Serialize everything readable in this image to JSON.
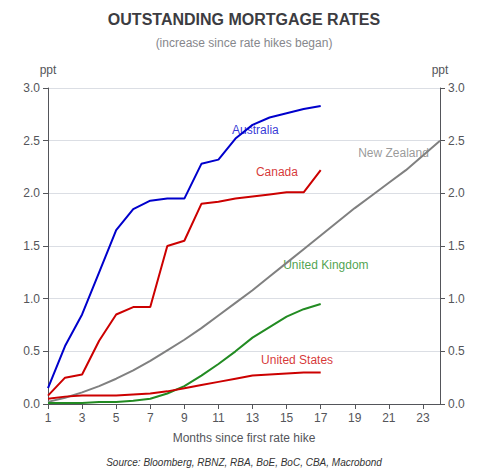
{
  "chart_data": {
    "type": "line",
    "title": "OUTSTANDING MORTGAGE RATES",
    "subtitle": "(increase since rate hikes began)",
    "xlabel": "Months since first rate hike",
    "ylabel": "ppt",
    "y2label": "ppt",
    "source": "Source: Bloomberg, RBNZ, RBA, BoE, BoC, CBA, Macrobond",
    "xlim": [
      1,
      24
    ],
    "xticks": [
      1,
      3,
      5,
      7,
      9,
      11,
      13,
      15,
      17,
      19,
      21,
      23
    ],
    "ylim": [
      0.0,
      3.0
    ],
    "yticks": [
      {
        "value": 0.0,
        "label": "0.0"
      },
      0.5,
      {
        "value": 1.0,
        "label": "1.0"
      },
      1.5,
      {
        "value": 2.0,
        "label": "2.0"
      },
      2.5,
      {
        "value": 3.0,
        "label": "3.0"
      }
    ],
    "y2lim": [
      0.0,
      3.0
    ],
    "y2ticks": [
      {
        "value": 0.0,
        "label": "0.0"
      },
      0.5,
      {
        "value": 1.0,
        "label": "1.0"
      },
      1.5,
      {
        "value": 2.0,
        "label": "2.0"
      },
      2.5,
      {
        "value": 3.0,
        "label": "3.0"
      }
    ],
    "grid": "y",
    "series": [
      {
        "name": "New Zealand",
        "color": "#808080",
        "x": [
          1,
          2,
          3,
          4,
          5,
          6,
          7,
          8,
          9,
          10,
          11,
          12,
          13,
          14,
          15,
          16,
          17,
          18,
          19,
          20,
          21,
          22,
          23,
          24
        ],
        "values": [
          0.02,
          0.06,
          0.11,
          0.17,
          0.24,
          0.32,
          0.41,
          0.51,
          0.61,
          0.72,
          0.84,
          0.96,
          1.08,
          1.21,
          1.34,
          1.47,
          1.6,
          1.73,
          1.86,
          1.98,
          2.1,
          2.22,
          2.36,
          2.5
        ]
      },
      {
        "name": "United Kingdom",
        "color": "#228B22",
        "x": [
          1,
          2,
          3,
          4,
          5,
          6,
          7,
          8,
          9,
          10,
          11,
          12,
          13,
          14,
          15,
          16,
          17
        ],
        "values": [
          0.01,
          0.01,
          0.01,
          0.02,
          0.02,
          0.03,
          0.05,
          0.1,
          0.17,
          0.27,
          0.38,
          0.5,
          0.63,
          0.73,
          0.83,
          0.9,
          0.95
        ]
      },
      {
        "name": "United States",
        "color": "#CC0000",
        "x": [
          1,
          2,
          3,
          4,
          5,
          6,
          7,
          8,
          9,
          10,
          11,
          12,
          13,
          14,
          15,
          16,
          17
        ],
        "values": [
          0.05,
          0.07,
          0.08,
          0.08,
          0.08,
          0.09,
          0.1,
          0.12,
          0.15,
          0.18,
          0.21,
          0.24,
          0.27,
          0.28,
          0.29,
          0.3,
          0.3
        ]
      },
      {
        "name": "Canada",
        "color": "#CC0000",
        "x": [
          1,
          2,
          3,
          4,
          5,
          6,
          7,
          8,
          9,
          10,
          11,
          12,
          13,
          14,
          15,
          16,
          17
        ],
        "values": [
          0.08,
          0.25,
          0.28,
          0.6,
          0.85,
          0.92,
          0.92,
          1.5,
          1.55,
          1.9,
          1.92,
          1.95,
          1.97,
          1.99,
          2.01,
          2.01,
          2.22
        ]
      },
      {
        "name": "Australia",
        "color": "#0000CC",
        "x": [
          1,
          2,
          3,
          4,
          5,
          6,
          7,
          8,
          9,
          10,
          11,
          12,
          13,
          14,
          15,
          16,
          17
        ],
        "values": [
          0.15,
          0.55,
          0.85,
          1.25,
          1.65,
          1.85,
          1.93,
          1.95,
          1.95,
          2.28,
          2.32,
          2.52,
          2.65,
          2.72,
          2.76,
          2.8,
          2.83
        ]
      }
    ],
    "annotations": [
      {
        "text": "Australia",
        "x": 11.8,
        "y": 2.6,
        "color": "#0000CC"
      },
      {
        "text": "Canada",
        "x": 13.2,
        "y": 2.2,
        "color": "#CC0000"
      },
      {
        "text": "New Zealand",
        "x": 19.2,
        "y": 2.38,
        "color": "#808080"
      },
      {
        "text": "United Kingdom",
        "x": 14.8,
        "y": 1.32,
        "color": "#228B22"
      },
      {
        "text": "United States",
        "x": 13.5,
        "y": 0.42,
        "color": "#CC0000"
      }
    ]
  }
}
